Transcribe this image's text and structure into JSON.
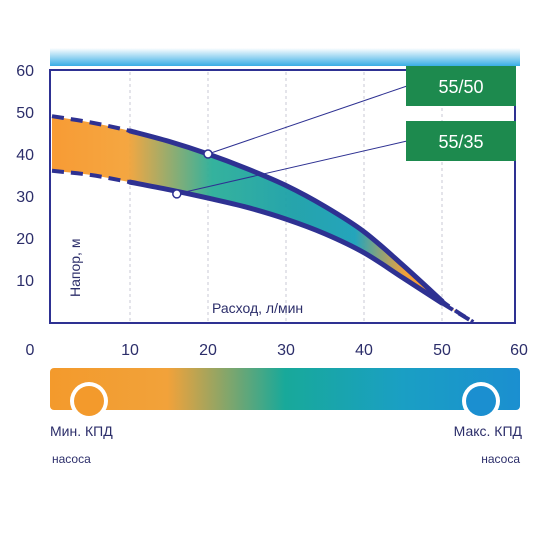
{
  "chart_data": {
    "type": "area",
    "xlabel": "Расход, л/мин",
    "ylabel": "Напор, м",
    "xlim": [
      0,
      60
    ],
    "ylim": [
      0,
      60
    ],
    "x_ticks": [
      "0",
      "10",
      "20",
      "30",
      "40",
      "50",
      "60"
    ],
    "y_ticks": [
      "10",
      "20",
      "30",
      "40",
      "50",
      "60"
    ],
    "grid": "vertical dashed",
    "series": [
      {
        "name": "55/50",
        "x": [
          0,
          5,
          10,
          15,
          20,
          25,
          30,
          35,
          40,
          45,
          50,
          54
        ],
        "y": [
          49,
          47.5,
          45.5,
          43,
          40,
          36.5,
          32.5,
          27.5,
          21.5,
          13.5,
          5,
          0
        ]
      },
      {
        "name": "55/35",
        "x": [
          0,
          5,
          10,
          15,
          20,
          25,
          30,
          35,
          40,
          45,
          50,
          54
        ],
        "y": [
          36,
          35,
          33.3,
          31.5,
          29.5,
          27.3,
          24.5,
          21,
          16.5,
          10.5,
          4.5,
          0
        ]
      }
    ],
    "markers": [
      {
        "series": "55/50",
        "x": 20,
        "y": 40
      },
      {
        "series": "55/35",
        "x": 16,
        "y": 30.5
      }
    ],
    "efficiency_scale": {
      "min_label": "Мин. КПД",
      "min_sublabel": "насоса",
      "max_label": "Макс. КПД",
      "max_sublabel": "насоса",
      "min_color": "#f39a2c",
      "max_color": "#1b8fd0"
    }
  },
  "colors": {
    "curve": "#2e3192",
    "label_bg": "#1d8a4e",
    "axis_text": "#2c2e6a",
    "plot_border": "#2e3192"
  }
}
